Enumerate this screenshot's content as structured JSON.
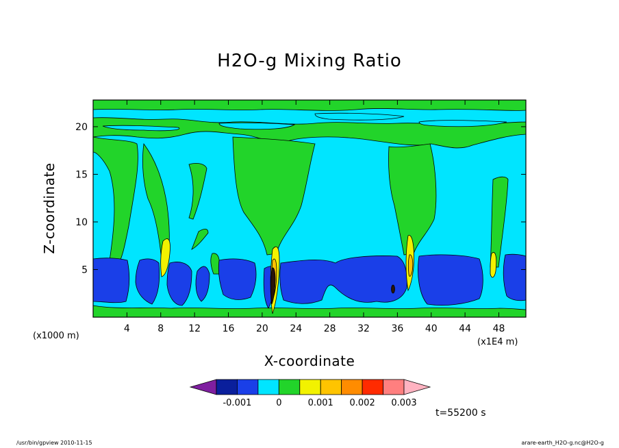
{
  "chart_data": {
    "type": "contour",
    "title": "H2O-g Mixing Ratio",
    "xlabel": "X-coordinate",
    "ylabel": "Z-coordinate",
    "x_unit_note": "(x1000 m)",
    "x_scale_note": "(x1E4 m)",
    "xlim": [
      0,
      51.2
    ],
    "ylim": [
      0,
      22.8
    ],
    "x_ticks": [
      4,
      8,
      12,
      16,
      20,
      24,
      28,
      32,
      36,
      40,
      44,
      48
    ],
    "y_ticks": [
      5,
      10,
      15,
      20
    ],
    "colorbar": {
      "levels": [
        -0.002,
        -0.0015,
        -0.001,
        -0.0005,
        0,
        0.0005,
        0.001,
        0.0015,
        0.002,
        0.0025,
        0.003,
        0.0035
      ],
      "tick_labels": [
        "-0.001",
        "0",
        "0.001",
        "0.002",
        "0.003"
      ],
      "colors": [
        "#7f1fa0",
        "#0a1f9c",
        "#1a3fe8",
        "#00e5ff",
        "#22d42a",
        "#f2f200",
        "#ffc400",
        "#ff8c00",
        "#ff2b00",
        "#ff7f7f",
        "#ffb3c1"
      ]
    }
  },
  "annotations": {
    "time": "t=55200 s",
    "footer_left": "/usr/bin/gpview   2010-11-15",
    "footer_right": "arare-earth_H2O-g.nc@H2O-g"
  },
  "colors": {
    "cyan": "#00e5ff",
    "green": "#22d42a",
    "blue": "#1a3fe8",
    "yellow": "#f2f200",
    "orange": "#ffc400",
    "dark": "#2a1408"
  }
}
